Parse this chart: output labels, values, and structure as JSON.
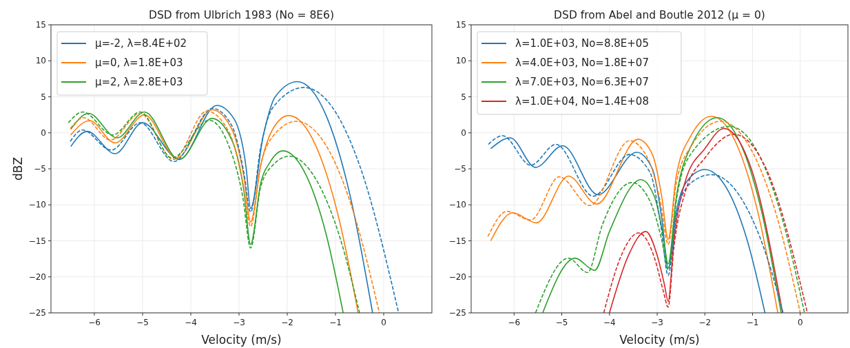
{
  "chart_data": [
    {
      "type": "line",
      "title": "DSD from Ulbrich 1983 (No = 8E6)",
      "xlabel": "Velocity (m/s)",
      "ylabel": "dBZ",
      "xlim": [
        -6.9,
        1.0
      ],
      "ylim": [
        -25,
        15
      ],
      "xticks": [
        -6,
        -5,
        -4,
        -3,
        -2,
        -1,
        0
      ],
      "yticks": [
        -25,
        -20,
        -15,
        -10,
        -5,
        0,
        5,
        10,
        15
      ],
      "grid": true,
      "legend": "top left",
      "series": [
        {
          "name": "μ=-2, λ=8.4E+02",
          "color": "#1f77b4",
          "line_style": "solid",
          "x": [
            -6.49,
            -6.15,
            -5.57,
            -5.0,
            -4.24,
            -3.46,
            -3.1,
            -2.85,
            -2.76,
            -2.5,
            -2.25,
            -1.79,
            -1.2,
            -0.7,
            -0.23
          ],
          "values": [
            -1.9,
            0.2,
            -2.9,
            1.4,
            -3.7,
            3.8,
            1.9,
            -5,
            -10.5,
            -0.5,
            5,
            7.1,
            2.5,
            -8.6,
            -25
          ]
        },
        {
          "name": "μ=0, λ=1.8E+03",
          "color": "#ff7f0e",
          "line_style": "solid",
          "x": [
            -6.49,
            -6.1,
            -5.57,
            -4.96,
            -4.29,
            -3.56,
            -3.15,
            -2.9,
            -2.76,
            -2.55,
            -2.3,
            -1.97,
            -1.4,
            -0.9,
            -0.53
          ],
          "values": [
            -0.3,
            1.7,
            -1.4,
            2.5,
            -3.5,
            3.2,
            0.5,
            -6,
            -12.4,
            -4.5,
            0.5,
            2.4,
            -1.9,
            -12.7,
            -25
          ]
        },
        {
          "name": "μ=2, λ=2.8E+03",
          "color": "#2ca02c",
          "line_style": "solid",
          "x": [
            -6.49,
            -6.12,
            -5.53,
            -4.96,
            -4.24,
            -3.56,
            -3.15,
            -2.9,
            -2.76,
            -2.55,
            -2.35,
            -2.09,
            -1.6,
            -1.2,
            -0.84
          ],
          "values": [
            0.5,
            2.7,
            -0.7,
            2.9,
            -3.7,
            2.0,
            -1,
            -8,
            -15.5,
            -7,
            -4,
            -2.5,
            -6.0,
            -13.9,
            -25
          ]
        },
        {
          "color": "#1f77b4",
          "line_style": "dashed",
          "x": [
            -6.5,
            -6.25,
            -5.65,
            -5.05,
            -4.35,
            -3.55,
            -3.15,
            -2.9,
            -2.76,
            -2.55,
            -2.3,
            -1.65,
            -1.0,
            -0.5,
            0.31
          ],
          "values": [
            -1.2,
            0.4,
            -2.4,
            1.4,
            -4.0,
            3.4,
            1.0,
            -5.5,
            -11,
            -2,
            3.5,
            6.3,
            2.9,
            -4.5,
            -25
          ]
        },
        {
          "color": "#ff7f0e",
          "line_style": "dashed",
          "x": [
            -6.5,
            -6.22,
            -5.67,
            -5.05,
            -4.36,
            -3.67,
            -3.2,
            -2.92,
            -2.76,
            -2.55,
            -2.3,
            -1.81,
            -1.2,
            -0.6,
            -0.09
          ],
          "values": [
            0.6,
            2.1,
            -1.0,
            2.7,
            -3.7,
            3.0,
            0,
            -7,
            -13,
            -4.5,
            -0.5,
            1.6,
            -1.7,
            -11.6,
            -25
          ]
        },
        {
          "color": "#2ca02c",
          "line_style": "dashed",
          "x": [
            -6.54,
            -6.24,
            -5.62,
            -5.05,
            -4.39,
            -3.62,
            -3.2,
            -2.92,
            -2.76,
            -2.55,
            -2.3,
            -1.96,
            -1.4,
            -0.9,
            -0.5
          ],
          "values": [
            1.4,
            2.9,
            -0.3,
            2.9,
            -3.5,
            1.75,
            -2,
            -9,
            -16,
            -7.5,
            -4.5,
            -3.25,
            -6.5,
            -14.7,
            -25
          ]
        }
      ]
    },
    {
      "type": "line",
      "title": "DSD from Abel and Boutle 2012 (μ = 0)",
      "xlabel": "Velocity (m/s)",
      "xlim": [
        -6.9,
        1.0
      ],
      "ylim": [
        -25,
        15
      ],
      "xticks": [
        -6,
        -5,
        -4,
        -3,
        -2,
        -1,
        0
      ],
      "yticks": [
        -25,
        -20,
        -15,
        -10,
        -5,
        0,
        5,
        10,
        15
      ],
      "grid": true,
      "legend": "top left",
      "series": [
        {
          "name": "λ=1.0E+03, No=8.8E+05",
          "color": "#1f77b4",
          "line_style": "solid",
          "x": [
            -6.49,
            -6.08,
            -5.55,
            -4.98,
            -4.24,
            -3.43,
            -3.1,
            -2.9,
            -2.77,
            -2.6,
            -2.35,
            -2.0,
            -1.5,
            -1.1,
            -0.74
          ],
          "values": [
            -2.2,
            -0.7,
            -4.8,
            -1.8,
            -8.6,
            -2.7,
            -5,
            -12,
            -18.8,
            -11,
            -6.5,
            -5.1,
            -8.2,
            -15.2,
            -25
          ]
        },
        {
          "name": "λ=4.0E+03, No=1.8E+07",
          "color": "#ff7f0e",
          "line_style": "solid",
          "x": [
            -6.49,
            -6.03,
            -5.53,
            -4.86,
            -4.27,
            -3.4,
            -3.1,
            -2.9,
            -2.77,
            -2.6,
            -2.3,
            -1.86,
            -1.3,
            -0.9,
            -0.47
          ],
          "values": [
            -15,
            -11.1,
            -12.5,
            -6.0,
            -9.9,
            -0.9,
            -3,
            -9,
            -14.8,
            -6,
            -0.5,
            2.3,
            -2.1,
            -10.7,
            -25
          ]
        },
        {
          "name": "λ=7.0E+03, No=6.3E+07",
          "color": "#2ca02c",
          "line_style": "solid",
          "x": [
            -5.4,
            -4.72,
            -4.31,
            -4.0,
            -3.34,
            -3.05,
            -2.88,
            -2.77,
            -2.6,
            -2.3,
            -1.74,
            -1.2,
            -0.8,
            -0.4
          ],
          "values": [
            -25,
            -17.4,
            -19.1,
            -13.7,
            -6.5,
            -9,
            -14,
            -18.2,
            -9,
            -2,
            2.1,
            -2.3,
            -11.2,
            -25
          ]
        },
        {
          "name": "λ=1.0E+04, No=1.4E+08",
          "color": "#d62728",
          "line_style": "solid",
          "x": [
            -4.0,
            -3.6,
            -3.24,
            -3.0,
            -2.85,
            -2.77,
            -2.65,
            -2.4,
            -2.0,
            -1.6,
            -1.0,
            -0.37
          ],
          "values": [
            -25,
            -17,
            -13.7,
            -17,
            -21,
            -23.4,
            -15,
            -6.5,
            -2.2,
            0.6,
            -5.5,
            -25
          ]
        },
        {
          "color": "#1f77b4",
          "line_style": "dashed",
          "x": [
            -6.54,
            -6.24,
            -5.65,
            -5.12,
            -4.34,
            -3.58,
            -3.15,
            -2.92,
            -2.77,
            -2.6,
            -2.3,
            -1.86,
            -1.2,
            -0.7,
            -0.36
          ],
          "values": [
            -1.6,
            -0.4,
            -4.5,
            -1.6,
            -8.8,
            -3.0,
            -5.5,
            -13,
            -19.8,
            -11.5,
            -7,
            -5.8,
            -9.5,
            -17.2,
            -25
          ]
        },
        {
          "color": "#ff7f0e",
          "line_style": "dashed",
          "x": [
            -6.55,
            -6.15,
            -5.65,
            -5.05,
            -4.41,
            -3.58,
            -3.2,
            -2.92,
            -2.77,
            -2.6,
            -2.3,
            -1.67,
            -1.0,
            -0.5,
            0.0
          ],
          "values": [
            -14.4,
            -10.9,
            -12.1,
            -6.1,
            -10.1,
            -1.1,
            -3.5,
            -10,
            -15.5,
            -7,
            -2,
            1.6,
            -2.7,
            -11.4,
            -25
          ]
        },
        {
          "color": "#2ca02c",
          "line_style": "dashed",
          "x": [
            -5.55,
            -4.86,
            -4.46,
            -4.15,
            -3.53,
            -3.15,
            -2.9,
            -2.77,
            -2.6,
            -2.3,
            -1.48,
            -0.9,
            -0.4,
            0.09
          ],
          "values": [
            -25,
            -17.4,
            -19.4,
            -12.8,
            -6.9,
            -9.5,
            -15,
            -19,
            -9.5,
            -3,
            0.9,
            -2.6,
            -11.4,
            -25
          ]
        },
        {
          "color": "#d62728",
          "line_style": "dashed",
          "x": [
            -4.12,
            -3.75,
            -3.39,
            -3.05,
            -2.87,
            -2.77,
            -2.65,
            -2.4,
            -2.0,
            -1.39,
            -0.7,
            0.15
          ],
          "values": [
            -25,
            -17,
            -13.9,
            -17.5,
            -22,
            -24.2,
            -16,
            -8,
            -3.5,
            -0.2,
            -5.2,
            -25
          ]
        }
      ]
    }
  ]
}
